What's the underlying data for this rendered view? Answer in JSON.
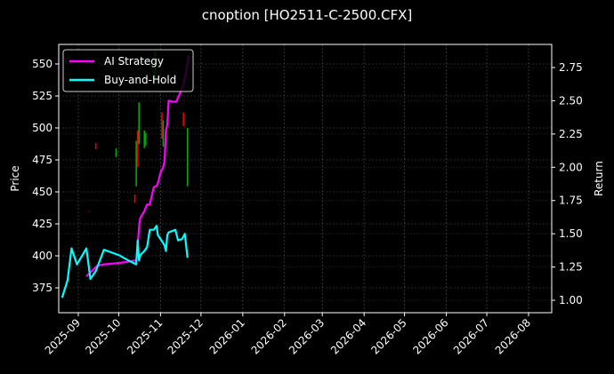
{
  "title": "cnoption [HO2511-C-2500.CFX]",
  "chart_data": {
    "type": "line",
    "title": "cnoption [HO2511-C-2500.CFX]",
    "xlabel": "",
    "ylabel_left": "Price",
    "ylabel_right": "Return",
    "x_ticks": [
      "2025-09",
      "2025-10",
      "2025-11",
      "2025-12",
      "2026-01",
      "2026-02",
      "2026-03",
      "2026-04",
      "2026-05",
      "2026-06",
      "2026-07",
      "2026-08"
    ],
    "y_left_ticks": [
      375,
      400,
      425,
      450,
      475,
      500,
      525,
      550
    ],
    "y_right_ticks": [
      "1.00",
      "1.25",
      "1.50",
      "1.75",
      "2.00",
      "2.25",
      "2.50",
      "2.75"
    ],
    "y_left_range": [
      360,
      563
    ],
    "y_right_range": [
      0.92,
      2.85
    ],
    "grid": true,
    "legend_position": "upper left",
    "legend": [
      "AI Strategy",
      "Buy-and-Hold"
    ],
    "series": [
      {
        "name": "AI Strategy",
        "color": "#ff00ff",
        "axis": "right",
        "x": [
          "2025-09-07",
          "2025-09-10",
          "2025-09-15",
          "2025-09-20",
          "2025-10-01",
          "2025-10-08",
          "2025-10-14",
          "2025-10-15",
          "2025-10-16",
          "2025-10-17",
          "2025-10-20",
          "2025-10-22",
          "2025-10-24",
          "2025-10-27",
          "2025-10-29",
          "2025-10-30",
          "2025-11-01",
          "2025-11-03",
          "2025-11-04",
          "2025-11-05",
          "2025-11-06",
          "2025-11-07",
          "2025-11-12",
          "2025-11-13",
          "2025-11-18",
          "2025-11-20",
          "2025-11-22"
        ],
        "values": [
          1.18,
          1.21,
          1.26,
          1.27,
          1.28,
          1.29,
          1.3,
          1.4,
          1.55,
          1.62,
          1.67,
          1.72,
          1.72,
          1.85,
          1.86,
          1.88,
          1.96,
          2.0,
          2.05,
          2.28,
          2.32,
          2.5,
          2.49,
          2.5,
          2.62,
          2.72,
          2.84
        ]
      },
      {
        "name": "Buy-and-Hold",
        "color": "#00ffff",
        "axis": "right",
        "x": [
          "2025-08-20",
          "2025-08-24",
          "2025-08-27",
          "2025-08-31",
          "2025-09-03",
          "2025-09-07",
          "2025-09-10",
          "2025-09-14",
          "2025-09-20",
          "2025-10-01",
          "2025-10-08",
          "2025-10-14",
          "2025-10-15",
          "2025-10-16",
          "2025-10-17",
          "2025-10-20",
          "2025-10-22",
          "2025-10-24",
          "2025-10-27",
          "2025-10-29",
          "2025-10-30",
          "2025-11-01",
          "2025-11-03",
          "2025-11-04",
          "2025-11-05",
          "2025-11-06",
          "2025-11-07",
          "2025-11-12",
          "2025-11-14",
          "2025-11-17",
          "2025-11-19",
          "2025-11-21"
        ],
        "values": [
          1.02,
          1.15,
          1.39,
          1.27,
          1.32,
          1.39,
          1.16,
          1.22,
          1.38,
          1.34,
          1.3,
          1.27,
          1.45,
          1.3,
          1.34,
          1.37,
          1.4,
          1.53,
          1.53,
          1.56,
          1.49,
          1.46,
          1.43,
          1.41,
          1.37,
          1.49,
          1.51,
          1.53,
          1.45,
          1.46,
          1.5,
          1.32
        ]
      }
    ],
    "candles_note": "Faint OHLC-style red/green price bars plotted on left (Price) axis"
  }
}
